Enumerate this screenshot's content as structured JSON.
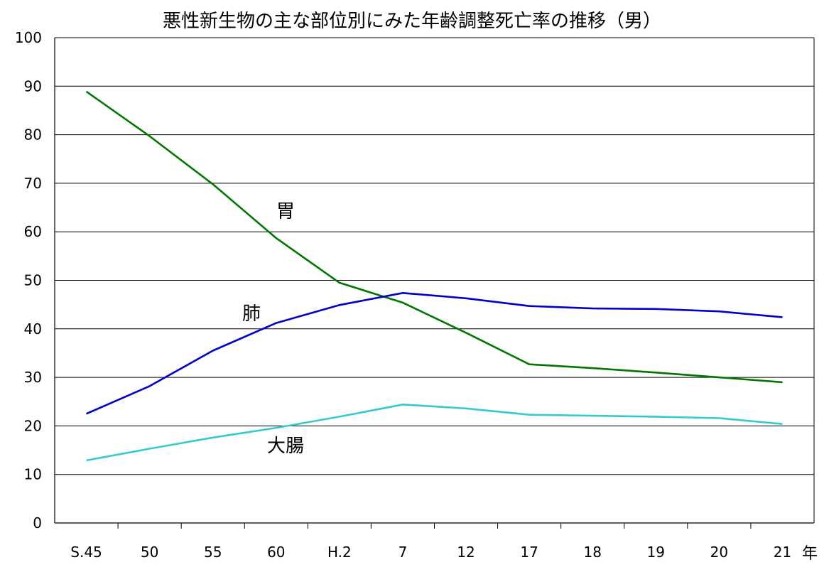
{
  "chart_data": {
    "type": "line",
    "title": "悪性新生物の主な部位別にみた年齢調整死亡率の推移（男）",
    "xlabel": "年",
    "ylabel": "",
    "ylim": [
      0,
      100
    ],
    "yticks": [
      "0",
      "10",
      "20",
      "30",
      "40",
      "50",
      "60",
      "70",
      "80",
      "90",
      "100"
    ],
    "categories": [
      "S.45",
      "50",
      "55",
      "60",
      "H.2",
      "7",
      "12",
      "17",
      "18",
      "19",
      "20",
      "21"
    ],
    "grid": true,
    "legend": "none",
    "series": [
      {
        "name": "胃",
        "color": "#007700",
        "values": [
          88.9,
          79.7,
          69.8,
          58.7,
          49.5,
          45.4,
          39.2,
          32.7,
          31.9,
          31.0,
          30.0,
          29.0
        ]
      },
      {
        "name": "肺",
        "color": "#0000cc",
        "values": [
          22.5,
          28.2,
          35.5,
          41.2,
          44.9,
          47.4,
          46.3,
          44.7,
          44.2,
          44.1,
          43.6,
          42.4
        ]
      },
      {
        "name": "大腸",
        "color": "#33cccc",
        "values": [
          12.9,
          15.3,
          17.6,
          19.6,
          21.9,
          24.4,
          23.6,
          22.3,
          22.1,
          21.9,
          21.6,
          20.4
        ]
      }
    ]
  }
}
